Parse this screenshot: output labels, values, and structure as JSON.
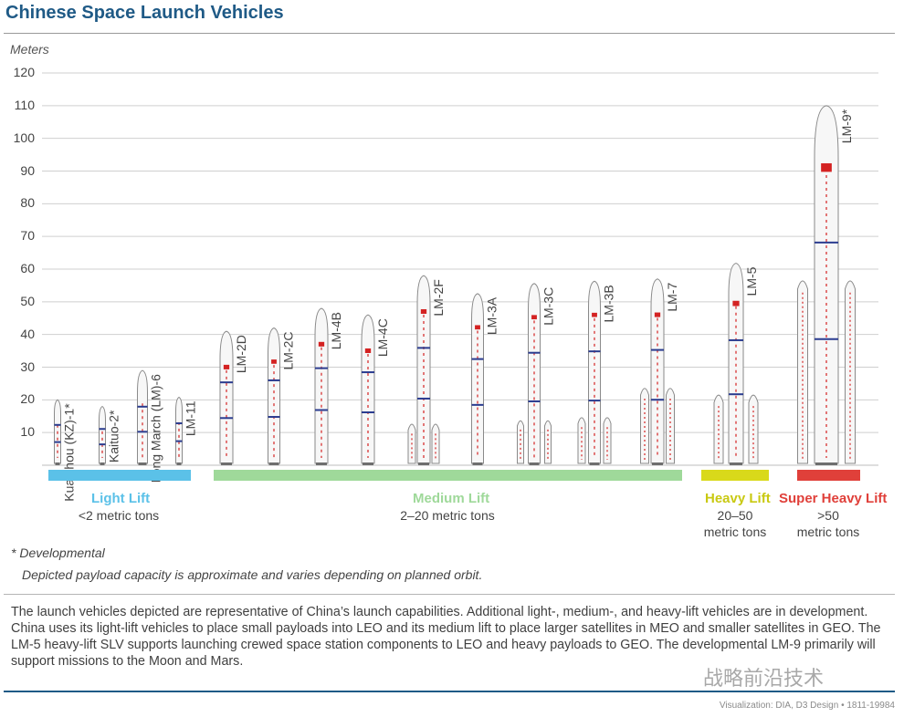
{
  "title": "Chinese Space Launch Vehicles",
  "chart_data": {
    "type": "bar",
    "ylabel": "Meters",
    "ylim": [
      0,
      120
    ],
    "yticks": [
      10,
      20,
      30,
      40,
      50,
      60,
      70,
      80,
      90,
      100,
      110,
      120
    ],
    "grid": true,
    "categories": [
      "Kuaizhou (KZ)-1*",
      "Kaituo-2*",
      "Long March (LM)-6",
      "LM-11",
      "LM-2D",
      "LM-2C",
      "LM-4B",
      "LM-4C",
      "LM-2F",
      "LM-3A",
      "LM-3C",
      "LM-3B",
      "LM-7",
      "LM-5",
      "LM-9*"
    ],
    "values": [
      20,
      18,
      29,
      20.8,
      41,
      42,
      48,
      46,
      58,
      52.5,
      55.6,
      56.3,
      57,
      61.8,
      110
    ],
    "lift_class": [
      "light",
      "light",
      "light",
      "light",
      "medium",
      "medium",
      "medium",
      "medium",
      "medium",
      "medium",
      "medium",
      "medium",
      "medium",
      "heavy",
      "superheavy"
    ]
  },
  "categories": [
    {
      "name": "Light Lift",
      "sub": [
        "<2 metric tons"
      ],
      "color": "#5bc1e8"
    },
    {
      "name": "Medium Lift",
      "sub": [
        "2–20 metric tons"
      ],
      "color": "#9fd99a"
    },
    {
      "name": "Heavy Lift",
      "sub": [
        "20–50",
        "metric tons"
      ],
      "color": "#d9d91a"
    },
    {
      "name": "Super Heavy Lift",
      "sub": [
        ">50",
        "metric tons"
      ],
      "color": "#e0403a"
    }
  ],
  "notes": {
    "developmental": "* Developmental",
    "payload": "Depicted payload capacity is approximate and varies depending on planned orbit."
  },
  "description": "The launch vehicles depicted are representative of China’s launch capabilities. Additional light-, medium-, and heavy-lift vehicles are in development. China uses its light-lift vehicles to place small payloads into LEO and its medium lift to place larger satellites in MEO and smaller satellites in GEO. The LM-5 heavy-lift SLV supports launching crewed space station components to LEO and heavy payloads to GEO. The developmental LM-9 primarily will support missions to the Moon and Mars.",
  "credit": "Visualization: DIA, D3 Design • 1811-19984",
  "watermark": "战略前沿技术",
  "colors": {
    "title": "#1f5a86",
    "grid": "#cfcfcf",
    "rocket_body": "#f7f7f7",
    "rocket_outline": "#8a8a8a",
    "band_blue": "#2b3c8f",
    "flag_red": "#d42222"
  }
}
